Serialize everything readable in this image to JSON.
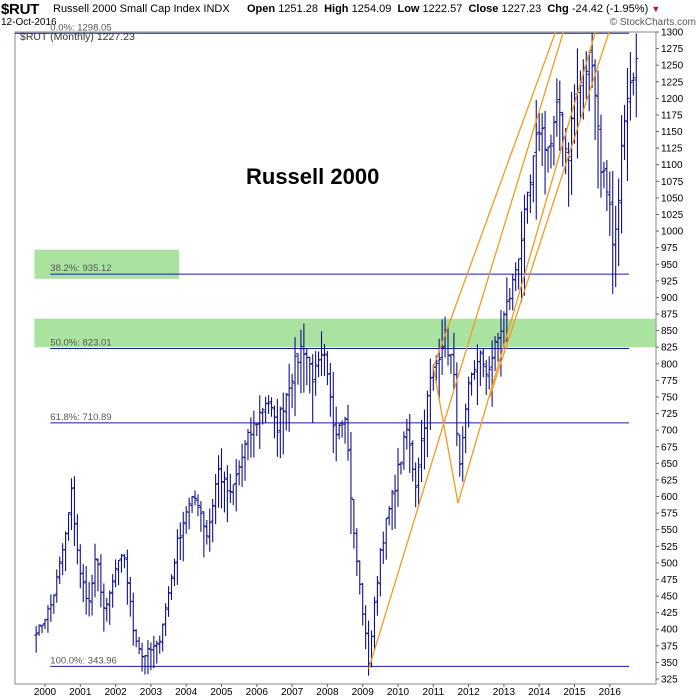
{
  "header": {
    "symbol": "$RUT",
    "description": "Russell 2000 Small Cap Index INDX",
    "date": "12-Oct-2016",
    "open_label": "Open",
    "open": "1251.28",
    "high_label": "High",
    "high": "1254.09",
    "low_label": "Low",
    "low": "1222.57",
    "close_label": "Close",
    "close": "1227.23",
    "chg_label": "Chg",
    "chg": "-24.42 (-1.95%)",
    "chg_arrow": "▼",
    "brand": "© StockCharts.com"
  },
  "chart_data": {
    "type": "ohlc",
    "title": "Russell 2000",
    "legend": "$RUT (Monthly) 1227.23",
    "y_axis": {
      "side": "right",
      "range": [
        325,
        1300
      ],
      "step": 25
    },
    "x_ticks": [
      "2000",
      "2001",
      "2002",
      "2003",
      "2004",
      "2005",
      "2006",
      "2007",
      "2008",
      "2009",
      "2010",
      "2011",
      "2012",
      "2013",
      "2014",
      "2015",
      "2016"
    ],
    "fib_levels": [
      {
        "label": "0.0%: 1298.05",
        "value": 1298.05
      },
      {
        "label": "38.2%: 935.12",
        "value": 935.12
      },
      {
        "label": "50.0%: 823.01",
        "value": 823.01
      },
      {
        "label": "61.8%: 710.89",
        "value": 710.89
      },
      {
        "label": "100.0%: 343.96",
        "value": 343.96
      }
    ],
    "zones": [
      {
        "from": 928,
        "to": 972,
        "x_start": 1999.7,
        "x_end": 2003.8
      },
      {
        "from": 825,
        "to": 868,
        "x_start": 1999.7,
        "x_end": 2017.3
      }
    ],
    "trendlines": [
      {
        "from": [
          2009.17,
          340
        ],
        "to": [
          2014.8,
          1320
        ]
      },
      {
        "from": [
          2011.0,
          795
        ],
        "to": [
          2014.6,
          1320
        ]
      },
      {
        "from": [
          2011.7,
          590
        ],
        "to": [
          2015.7,
          1320
        ]
      },
      {
        "from": [
          2012.6,
          750
        ],
        "to": [
          2016.1,
          1320
        ]
      },
      {
        "from": [
          2011.0,
          795
        ],
        "to": [
          2011.7,
          590
        ]
      }
    ],
    "anchors": [
      [
        1999.83,
        400
      ],
      [
        2000.2,
        440
      ],
      [
        2000.58,
        540
      ],
      [
        2000.75,
        605
      ],
      [
        2001.0,
        480
      ],
      [
        2001.25,
        440
      ],
      [
        2001.45,
        510
      ],
      [
        2001.7,
        420
      ],
      [
        2002.0,
        490
      ],
      [
        2002.25,
        510
      ],
      [
        2002.5,
        400
      ],
      [
        2002.75,
        360
      ],
      [
        2003.2,
        375
      ],
      [
        2003.45,
        440
      ],
      [
        2003.75,
        530
      ],
      [
        2004.0,
        580
      ],
      [
        2004.3,
        600
      ],
      [
        2004.6,
        540
      ],
      [
        2004.9,
        640
      ],
      [
        2005.25,
        600
      ],
      [
        2005.7,
        680
      ],
      [
        2006.3,
        750
      ],
      [
        2006.55,
        700
      ],
      [
        2006.9,
        770
      ],
      [
        2007.3,
        830
      ],
      [
        2007.6,
        780
      ],
      [
        2007.9,
        810
      ],
      [
        2008.2,
        700
      ],
      [
        2008.5,
        730
      ],
      [
        2008.75,
        540
      ],
      [
        2009.17,
        350
      ],
      [
        2009.5,
        520
      ],
      [
        2009.8,
        590
      ],
      [
        2010.25,
        700
      ],
      [
        2010.5,
        620
      ],
      [
        2010.9,
        770
      ],
      [
        2011.3,
        845
      ],
      [
        2011.55,
        800
      ],
      [
        2011.75,
        640
      ],
      [
        2012.0,
        760
      ],
      [
        2012.3,
        820
      ],
      [
        2012.45,
        780
      ],
      [
        2012.8,
        830
      ],
      [
        2013.25,
        920
      ],
      [
        2013.7,
        1050
      ],
      [
        2014.0,
        1160
      ],
      [
        2014.3,
        1120
      ],
      [
        2014.55,
        1190
      ],
      [
        2014.8,
        1110
      ],
      [
        2015.0,
        1200
      ],
      [
        2015.5,
        1270
      ],
      [
        2015.75,
        1100
      ],
      [
        2016.0,
        1050
      ],
      [
        2016.1,
        960
      ],
      [
        2016.35,
        1130
      ],
      [
        2016.55,
        1200
      ],
      [
        2016.75,
        1240
      ],
      [
        2016.8,
        1225
      ]
    ]
  }
}
